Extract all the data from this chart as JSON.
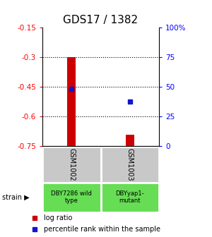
{
  "title": "GDS17 / 1382",
  "ylim": [
    -0.75,
    -0.15
  ],
  "yticks": [
    -0.75,
    -0.6,
    -0.45,
    -0.3,
    -0.15
  ],
  "ytick_labels": [
    "-0.75",
    "-0.6",
    "-0.45",
    "-0.3",
    "-0.15"
  ],
  "y2ticks": [
    0,
    25,
    50,
    75,
    100
  ],
  "y2tick_labels": [
    "0",
    "25",
    "50",
    "75",
    "100%"
  ],
  "samples": [
    "GSM1002",
    "GSM1003"
  ],
  "log_ratios": [
    -0.3,
    -0.695
  ],
  "log_ratio_bases": [
    -0.75,
    -0.75
  ],
  "pct_values_gsm1002": 48,
  "pct_values_gsm1003": 37,
  "bar_color": "#cc0000",
  "dot_color": "#1414cc",
  "sample_labels_bg": "#c8c8c8",
  "strain_labels": [
    "DBY7286 wild\ntype",
    "DBYyap1-\nmutant"
  ],
  "strain_bg_color": "#66dd55",
  "grid_color": "#000000",
  "bg_color": "#ffffff",
  "bar_width": 0.15
}
